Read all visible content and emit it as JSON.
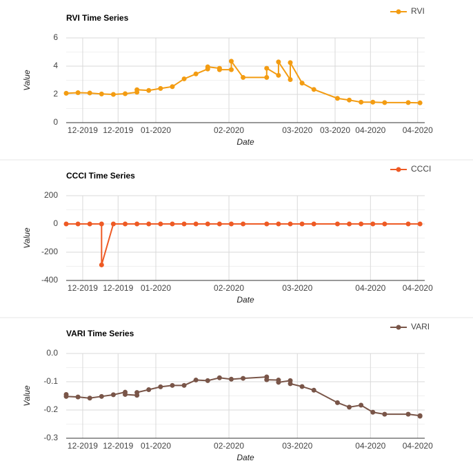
{
  "chart_data": [
    {
      "type": "line",
      "title": "RVI Time Series",
      "xlabel": "Date",
      "ylabel": "Value",
      "legend": "top-right",
      "grid": true,
      "x": [
        -7,
        -2,
        3,
        8,
        13,
        18,
        23,
        23,
        28,
        33,
        38,
        43,
        48,
        53,
        53,
        58,
        58,
        63,
        63,
        68,
        78,
        78,
        83,
        83,
        88,
        88,
        93,
        98,
        108,
        113,
        118,
        123,
        128,
        138,
        143
      ],
      "series": [
        {
          "name": "RVI",
          "color": "#f39c12",
          "values": [
            2.08,
            2.12,
            2.1,
            2.03,
            2.0,
            2.05,
            2.15,
            2.33,
            2.28,
            2.42,
            2.55,
            3.1,
            3.45,
            3.8,
            3.95,
            3.85,
            3.75,
            3.75,
            4.35,
            3.2,
            3.2,
            3.85,
            3.35,
            4.3,
            3.05,
            4.25,
            2.8,
            2.35,
            1.72,
            1.6,
            1.45,
            1.45,
            1.42,
            1.42,
            1.4
          ]
        }
      ],
      "xlim": [
        -7,
        145
      ],
      "xticks": [
        {
          "value": 0,
          "label": "12-2019"
        },
        {
          "value": 15,
          "label": "12-2019"
        },
        {
          "value": 31,
          "label": "01-2020"
        },
        {
          "value": 62,
          "label": "02-2020"
        },
        {
          "value": 91,
          "label": "03-2020"
        },
        {
          "value": 107,
          "label": "03-2020"
        },
        {
          "value": 122,
          "label": "04-2020"
        },
        {
          "value": 142,
          "label": "04-2020"
        }
      ],
      "ylim": [
        0,
        6
      ],
      "yticks": [
        0,
        2,
        4,
        6
      ]
    },
    {
      "type": "line",
      "title": "CCCI Time Series",
      "xlabel": "Date",
      "ylabel": "Value",
      "legend": "top-right",
      "grid": true,
      "x": [
        -7,
        -2,
        3,
        8,
        8,
        13,
        18,
        23,
        28,
        33,
        38,
        43,
        48,
        53,
        58,
        63,
        68,
        78,
        83,
        88,
        93,
        98,
        108,
        113,
        118,
        123,
        128,
        138,
        143
      ],
      "series": [
        {
          "name": "CCCI",
          "color": "#ee5a24",
          "values": [
            0,
            0,
            0,
            0,
            -290,
            0,
            0,
            0,
            0,
            0,
            0,
            0,
            0,
            0,
            0,
            0,
            0,
            0,
            0,
            0,
            0,
            0,
            0,
            0,
            0,
            0,
            0,
            0,
            0
          ]
        }
      ],
      "xlim": [
        -7,
        145
      ],
      "xticks": [
        {
          "value": 0,
          "label": "12-2019"
        },
        {
          "value": 15,
          "label": "12-2019"
        },
        {
          "value": 31,
          "label": "01-2020"
        },
        {
          "value": 62,
          "label": "02-2020"
        },
        {
          "value": 91,
          "label": "03-2020"
        },
        {
          "value": 122,
          "label": "04-2020"
        },
        {
          "value": 142,
          "label": "04-2020"
        }
      ],
      "ylim": [
        -400,
        200
      ],
      "yticks": [
        -400,
        -200,
        0,
        200
      ]
    },
    {
      "type": "line",
      "title": "VARI Time Series",
      "xlabel": "Date",
      "ylabel": "Value",
      "legend": "top-right",
      "grid": true,
      "x": [
        -7,
        -7,
        -2,
        3,
        8,
        13,
        18,
        18,
        23,
        23,
        28,
        33,
        38,
        43,
        48,
        53,
        58,
        63,
        68,
        78,
        78,
        83,
        83,
        88,
        88,
        93,
        98,
        108,
        113,
        118,
        123,
        128,
        138,
        143,
        143
      ],
      "series": [
        {
          "name": "VARI",
          "color": "#795548",
          "values": [
            -0.145,
            -0.152,
            -0.154,
            -0.158,
            -0.152,
            -0.146,
            -0.137,
            -0.145,
            -0.148,
            -0.138,
            -0.128,
            -0.118,
            -0.113,
            -0.113,
            -0.094,
            -0.096,
            -0.086,
            -0.091,
            -0.088,
            -0.083,
            -0.093,
            -0.094,
            -0.102,
            -0.096,
            -0.107,
            -0.117,
            -0.13,
            -0.174,
            -0.19,
            -0.183,
            -0.208,
            -0.215,
            -0.215,
            -0.22,
            -0.222
          ]
        }
      ],
      "xlim": [
        -7,
        145
      ],
      "xticks": [
        {
          "value": 0,
          "label": "12-2019"
        },
        {
          "value": 15,
          "label": "12-2019"
        },
        {
          "value": 31,
          "label": "01-2020"
        },
        {
          "value": 62,
          "label": "02-2020"
        },
        {
          "value": 91,
          "label": "03-2020"
        },
        {
          "value": 122,
          "label": "04-2020"
        },
        {
          "value": 142,
          "label": "04-2020"
        }
      ],
      "ylim": [
        -0.3,
        0
      ],
      "yticks": [
        -0.3,
        -0.2,
        -0.1,
        {
          "value": 0,
          "label": "0.0"
        }
      ]
    }
  ]
}
